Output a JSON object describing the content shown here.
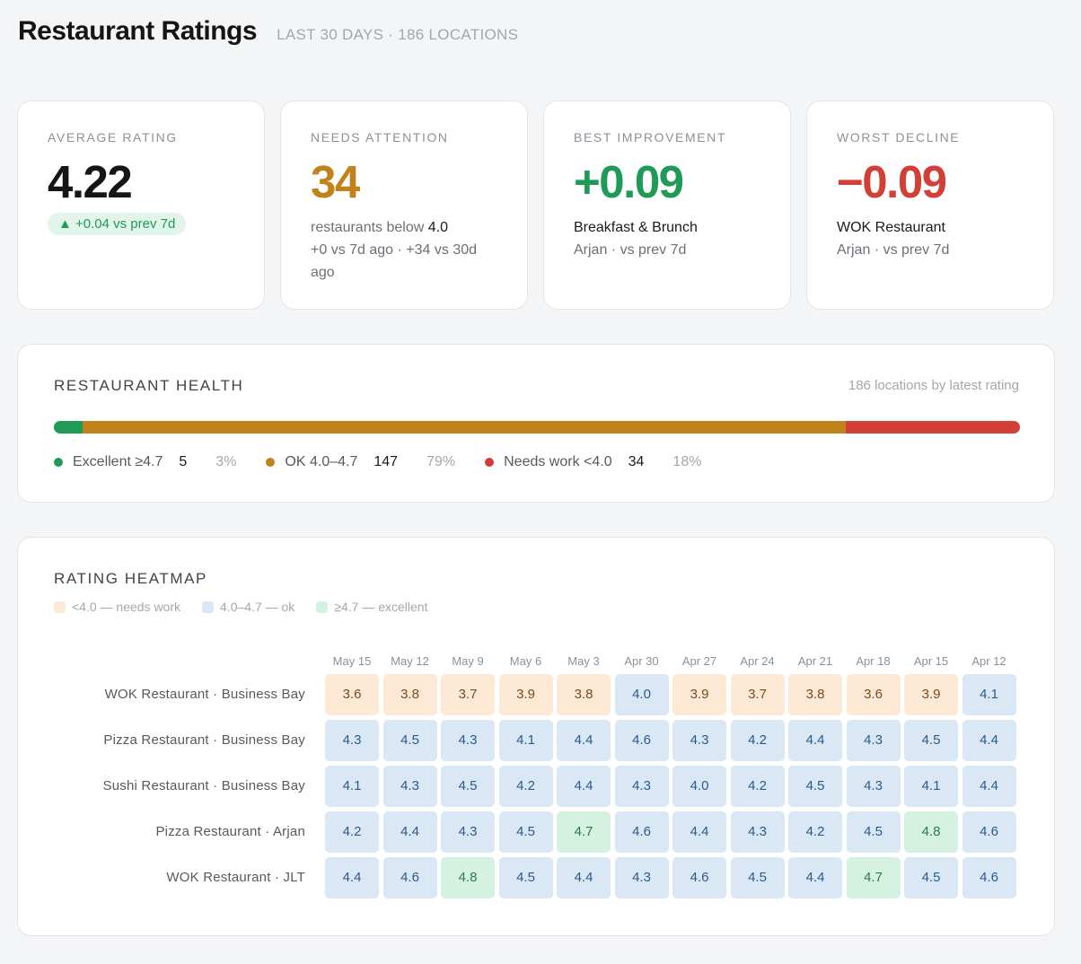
{
  "header": {
    "title": "Restaurant Ratings",
    "subtitle": "LAST 30 DAYS · 186 LOCATIONS"
  },
  "kpis": {
    "average": {
      "label": "AVERAGE RATING",
      "value": "4.22",
      "badge": "▲ +0.04 vs prev 7d"
    },
    "attention": {
      "label": "NEEDS ATTENTION",
      "value": "34",
      "line1_prefix": "restaurants below ",
      "line1_bold": "4.0",
      "line2": "+0 vs 7d ago · +34 vs 30d ago"
    },
    "improvement": {
      "label": "BEST IMPROVEMENT",
      "value": "+0.09",
      "name": "Breakfast & Brunch",
      "sub": "Arjan · vs prev 7d"
    },
    "decline": {
      "label": "WORST DECLINE",
      "value": "−0.09",
      "name": "WOK Restaurant",
      "sub": "Arjan · vs prev 7d"
    }
  },
  "health": {
    "title": "RESTAURANT HEALTH",
    "note": "186 locations by latest rating",
    "segments": [
      {
        "label": "Excellent ≥4.7",
        "count": "5",
        "pct": "3%",
        "share": 0.03,
        "color": "#1f9a57"
      },
      {
        "label": "OK 4.0–4.7",
        "count": "147",
        "pct": "79%",
        "share": 0.79,
        "color": "#c1811b"
      },
      {
        "label": "Needs work <4.0",
        "count": "34",
        "pct": "18%",
        "share": 0.18,
        "color": "#d13f37"
      }
    ]
  },
  "heatmap": {
    "title": "RATING HEATMAP",
    "legend": [
      {
        "label": "<4.0 — needs work",
        "color": "#fde9d6"
      },
      {
        "label": "4.0–4.7 — ok",
        "color": "#dae8f6"
      },
      {
        "label": "≥4.7 — excellent",
        "color": "#d5f1e2"
      }
    ],
    "dates": [
      "May 15",
      "May 12",
      "May 9",
      "May 6",
      "May 3",
      "Apr 30",
      "Apr 27",
      "Apr 24",
      "Apr 21",
      "Apr 18",
      "Apr 15",
      "Apr 12"
    ],
    "rows": [
      {
        "label": "WOK Restaurant · Business Bay",
        "values": [
          "3.6",
          "3.8",
          "3.7",
          "3.9",
          "3.8",
          "4.0",
          "3.9",
          "3.7",
          "3.8",
          "3.6",
          "3.9",
          "4.1"
        ]
      },
      {
        "label": "Pizza Restaurant · Business Bay",
        "values": [
          "4.3",
          "4.5",
          "4.3",
          "4.1",
          "4.4",
          "4.6",
          "4.3",
          "4.2",
          "4.4",
          "4.3",
          "4.5",
          "4.4"
        ]
      },
      {
        "label": "Sushi Restaurant · Business Bay",
        "values": [
          "4.1",
          "4.3",
          "4.5",
          "4.2",
          "4.4",
          "4.3",
          "4.0",
          "4.2",
          "4.5",
          "4.3",
          "4.1",
          "4.4"
        ]
      },
      {
        "label": "Pizza Restaurant · Arjan",
        "values": [
          "4.2",
          "4.4",
          "4.3",
          "4.5",
          "4.7",
          "4.6",
          "4.4",
          "4.3",
          "4.2",
          "4.5",
          "4.8",
          "4.6"
        ]
      },
      {
        "label": "WOK Restaurant · JLT",
        "values": [
          "4.4",
          "4.6",
          "4.8",
          "4.5",
          "4.4",
          "4.3",
          "4.6",
          "4.5",
          "4.4",
          "4.7",
          "4.5",
          "4.6"
        ]
      }
    ]
  }
}
